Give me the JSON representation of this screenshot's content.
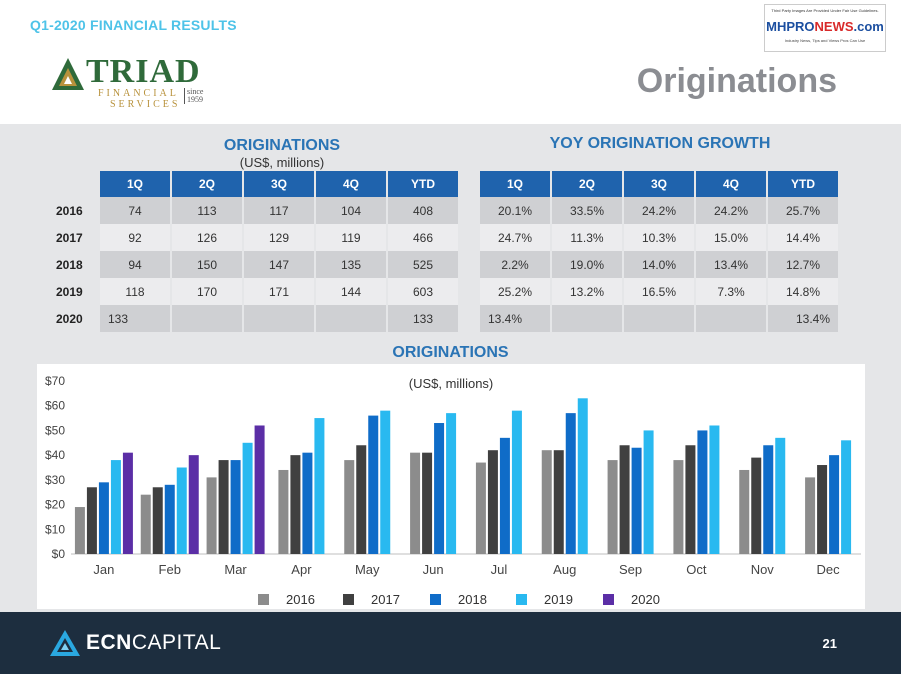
{
  "header": {
    "slide_label": "Q1-2020 FINANCIAL RESULTS",
    "page_title": "Originations",
    "triad_logo": {
      "word": "TRIAD",
      "sub1": "FINANCIAL",
      "sub2": "SERVICES",
      "since_top": "since",
      "since_year": "1959"
    },
    "watermark": {
      "small": "Third Party Images Are Provided Under Fair Use Guidelines.",
      "name_a": "MHPRO",
      "name_b": "NEWS",
      "name_c": ".com",
      "tagline": "Industry News, Tips and Views Pros Can Use"
    }
  },
  "originations_table": {
    "title": "ORIGINATIONS",
    "subtitle": "(US$, millions)",
    "columns": [
      "1Q",
      "2Q",
      "3Q",
      "4Q",
      "YTD"
    ],
    "rows": [
      {
        "year": "2016",
        "values": [
          "74",
          "113",
          "117",
          "104",
          "408"
        ]
      },
      {
        "year": "2017",
        "values": [
          "92",
          "126",
          "129",
          "119",
          "466"
        ]
      },
      {
        "year": "2018",
        "values": [
          "94",
          "150",
          "147",
          "135",
          "525"
        ]
      },
      {
        "year": "2019",
        "values": [
          "118",
          "170",
          "171",
          "144",
          "603"
        ]
      },
      {
        "year": "2020",
        "values": [
          "133",
          "",
          "",
          "",
          "133"
        ]
      }
    ]
  },
  "growth_table": {
    "title": "YOY ORIGINATION GROWTH",
    "columns": [
      "1Q",
      "2Q",
      "3Q",
      "4Q",
      "YTD"
    ],
    "rows": [
      {
        "values": [
          "20.1%",
          "33.5%",
          "24.2%",
          "24.2%",
          "25.7%"
        ]
      },
      {
        "values": [
          "24.7%",
          "11.3%",
          "10.3%",
          "15.0%",
          "14.4%"
        ]
      },
      {
        "values": [
          "2.2%",
          "19.0%",
          "14.0%",
          "13.4%",
          "12.7%"
        ]
      },
      {
        "values": [
          "25.2%",
          "13.2%",
          "16.5%",
          "7.3%",
          "14.8%"
        ]
      },
      {
        "values": [
          "13.4%",
          "",
          "",
          "",
          "13.4%"
        ]
      }
    ]
  },
  "chart_data": {
    "type": "bar",
    "title": "ORIGINATIONS",
    "subtitle": "(US$, millions)",
    "categories": [
      "Jan",
      "Feb",
      "Mar",
      "Apr",
      "May",
      "Jun",
      "Jul",
      "Aug",
      "Sep",
      "Oct",
      "Nov",
      "Dec"
    ],
    "y_ticks": [
      "$0",
      "$10",
      "$20",
      "$30",
      "$40",
      "$50",
      "$60",
      "$70"
    ],
    "ylim": [
      0,
      70
    ],
    "legend_position": "bottom",
    "grid": false,
    "series": [
      {
        "name": "2016",
        "color": "#8c8c8c",
        "values": [
          19,
          24,
          31,
          34,
          38,
          41,
          37,
          42,
          38,
          38,
          34,
          31
        ]
      },
      {
        "name": "2017",
        "color": "#404040",
        "values": [
          27,
          27,
          38,
          40,
          44,
          41,
          42,
          42,
          44,
          44,
          39,
          36
        ]
      },
      {
        "name": "2018",
        "color": "#0f6cc8",
        "values": [
          29,
          28,
          38,
          41,
          56,
          53,
          47,
          57,
          43,
          50,
          44,
          40
        ]
      },
      {
        "name": "2019",
        "color": "#29b9f0",
        "values": [
          38,
          35,
          45,
          55,
          58,
          57,
          58,
          63,
          50,
          52,
          47,
          46
        ]
      },
      {
        "name": "2020",
        "color": "#5b2ea6",
        "values": [
          41,
          40,
          52,
          null,
          null,
          null,
          null,
          null,
          null,
          null,
          null,
          null
        ]
      }
    ]
  },
  "footer": {
    "brand_bold": "ECN",
    "brand_light": "CAPITAL",
    "page_number": "21"
  }
}
